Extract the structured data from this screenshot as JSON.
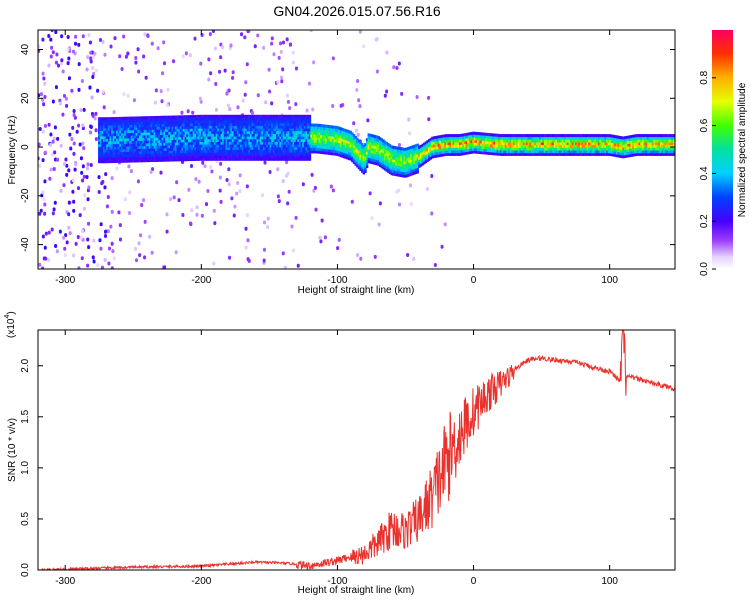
{
  "figure": {
    "title": "GN04.2026.015.07.56.R16"
  },
  "chart_data": [
    {
      "type": "heatmap",
      "name": "spectrogram",
      "xlabel": "Height of straight line (km)",
      "ylabel": "Frequency (Hz)",
      "xlim": [
        -320,
        148
      ],
      "ylim": [
        -50,
        48
      ],
      "xticks": [
        -300,
        -200,
        -100,
        0,
        100
      ],
      "yticks": [
        -40,
        -20,
        0,
        20,
        40
      ],
      "ridge_frequency_hz": {
        "x": [
          -270,
          -200,
          -130,
          -115,
          -100,
          -90,
          -80,
          -77,
          -70,
          -60,
          -50,
          -40,
          -30,
          -20,
          -10,
          0,
          20,
          40,
          60,
          80,
          100,
          110,
          120,
          148
        ],
        "y": [
          3,
          4,
          4,
          4,
          3,
          1,
          -5,
          0,
          -1,
          -5,
          -6,
          -4,
          0,
          1,
          1,
          2,
          1,
          1,
          1,
          1,
          1,
          0,
          1,
          1
        ]
      },
      "colorbar": {
        "label": "Normalized spectral amplitude",
        "range": [
          0,
          1
        ],
        "ticks": [
          "0.0",
          "0.2",
          "0.4",
          "0.6",
          "0.8"
        ]
      }
    },
    {
      "type": "line",
      "name": "snr",
      "xlabel": "Height of straight line (km)",
      "ylabel": "SNR (10 * v/v)",
      "scale_note": "(x10",
      "scale_exp": "4",
      "xlim": [
        -320,
        148
      ],
      "ylim": [
        0,
        2.35
      ],
      "xticks": [
        -300,
        -200,
        -100,
        0,
        100
      ],
      "yticks": [
        "0.0",
        "0.5",
        "1.0",
        "1.5",
        "2.0"
      ],
      "color": "#e8322d",
      "series_units": "x10^4",
      "x": [
        -320,
        -300,
        -250,
        -200,
        -180,
        -160,
        -140,
        -120,
        -100,
        -90,
        -80,
        -70,
        -60,
        -50,
        -40,
        -30,
        -20,
        -10,
        0,
        10,
        20,
        30,
        40,
        50,
        60,
        70,
        80,
        90,
        100,
        108,
        110,
        112,
        120,
        130,
        148
      ],
      "y": [
        0.0,
        0.01,
        0.03,
        0.04,
        0.06,
        0.08,
        0.07,
        0.05,
        0.1,
        0.14,
        0.18,
        0.3,
        0.45,
        0.42,
        0.55,
        0.8,
        1.15,
        1.4,
        1.6,
        1.75,
        1.85,
        1.97,
        2.06,
        2.08,
        2.06,
        2.05,
        2.02,
        1.98,
        1.95,
        1.85,
        2.3,
        1.9,
        1.88,
        1.84,
        1.78
      ]
    }
  ]
}
